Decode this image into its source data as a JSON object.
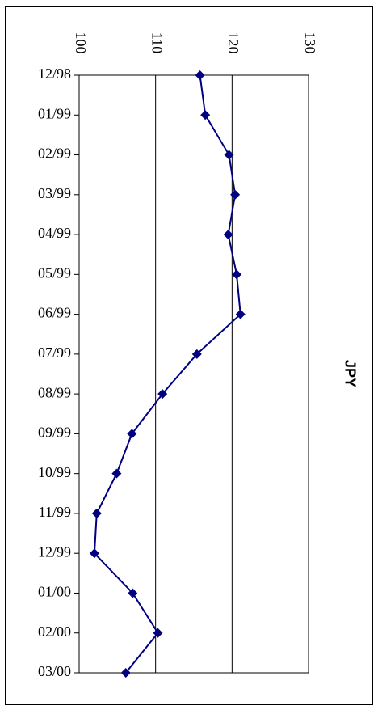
{
  "chart_data": {
    "type": "line",
    "title": "JPY",
    "xlabel": "",
    "ylabel": "",
    "orientation": "rotated-90-clockwise",
    "categories": [
      "12/98",
      "01/99",
      "02/99",
      "03/99",
      "04/99",
      "05/99",
      "06/99",
      "07/99",
      "08/99",
      "09/99",
      "10/99",
      "11/99",
      "12/99",
      "01/00",
      "02/00",
      "03/00"
    ],
    "values": [
      115.8,
      116.5,
      119.6,
      120.4,
      119.5,
      120.6,
      121.1,
      115.4,
      110.9,
      106.9,
      104.9,
      102.3,
      102.0,
      107.0,
      110.3,
      106.1
    ],
    "ylim": [
      100,
      130
    ],
    "yticks": [
      "100",
      "110",
      "120",
      "130"
    ],
    "grid": true,
    "series_color": "#000080"
  }
}
